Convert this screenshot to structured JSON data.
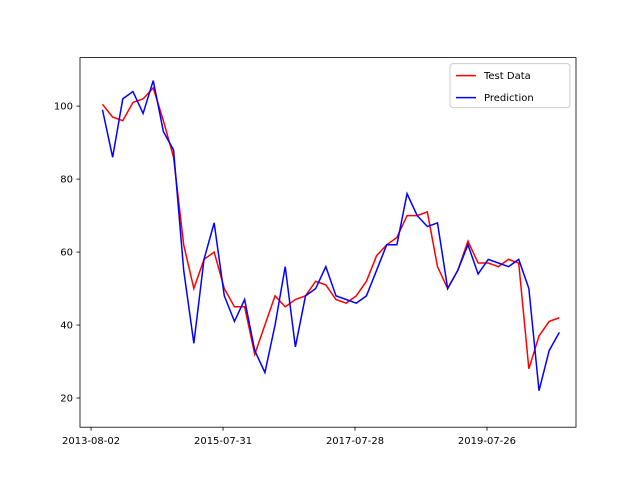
{
  "chart_data": {
    "type": "line",
    "x": [
      "2013-10-04",
      "2013-11-29",
      "2014-01-24",
      "2014-03-21",
      "2014-05-16",
      "2014-07-11",
      "2014-09-05",
      "2014-10-31",
      "2014-12-26",
      "2015-02-20",
      "2015-04-17",
      "2015-06-12",
      "2015-08-07",
      "2015-10-02",
      "2015-11-27",
      "2016-01-22",
      "2016-03-18",
      "2016-05-13",
      "2016-07-08",
      "2016-09-02",
      "2016-10-28",
      "2016-12-23",
      "2017-02-17",
      "2017-04-14",
      "2017-06-09",
      "2017-08-04",
      "2017-09-29",
      "2017-11-24",
      "2018-01-19",
      "2018-03-16",
      "2018-05-11",
      "2018-07-06",
      "2018-08-31",
      "2018-10-26",
      "2018-12-21",
      "2019-02-15",
      "2019-04-12",
      "2019-06-07",
      "2019-08-02",
      "2019-09-27",
      "2019-11-22",
      "2020-01-17",
      "2020-03-13",
      "2020-05-08",
      "2020-07-03",
      "2020-08-28"
    ],
    "series": [
      {
        "name": "Test Data",
        "color": "#ff0000",
        "values": [
          100.5,
          97,
          96,
          101,
          102,
          105,
          96,
          86,
          62,
          50,
          58,
          60,
          50,
          45,
          45,
          32,
          40,
          48,
          45,
          47,
          48,
          52,
          51,
          47,
          46,
          48,
          52,
          59,
          62,
          64,
          70,
          70,
          71,
          56,
          50,
          55,
          63,
          57,
          57,
          56,
          58,
          57,
          28,
          37,
          41,
          42
        ]
      },
      {
        "name": "Prediction",
        "color": "#0000ff",
        "values": [
          99,
          86,
          102,
          104,
          98,
          107,
          93,
          88,
          55,
          35,
          58,
          68,
          48,
          41,
          47,
          33,
          27,
          40,
          56,
          34,
          48,
          50,
          56,
          48,
          47,
          46,
          48,
          55,
          62,
          62,
          76,
          70,
          67,
          68,
          50,
          55,
          62,
          54,
          58,
          57,
          56,
          58,
          50,
          22,
          33,
          38
        ]
      }
    ],
    "xlim": [
      "2013-06-02",
      "2020-11-28"
    ],
    "xticks": [
      "2013-08-02",
      "2015-07-31",
      "2017-07-28",
      "2019-07-26"
    ],
    "ylim": [
      12,
      113.3
    ],
    "yticks": [
      20,
      40,
      60,
      80,
      100
    ],
    "legend": "upper right"
  }
}
